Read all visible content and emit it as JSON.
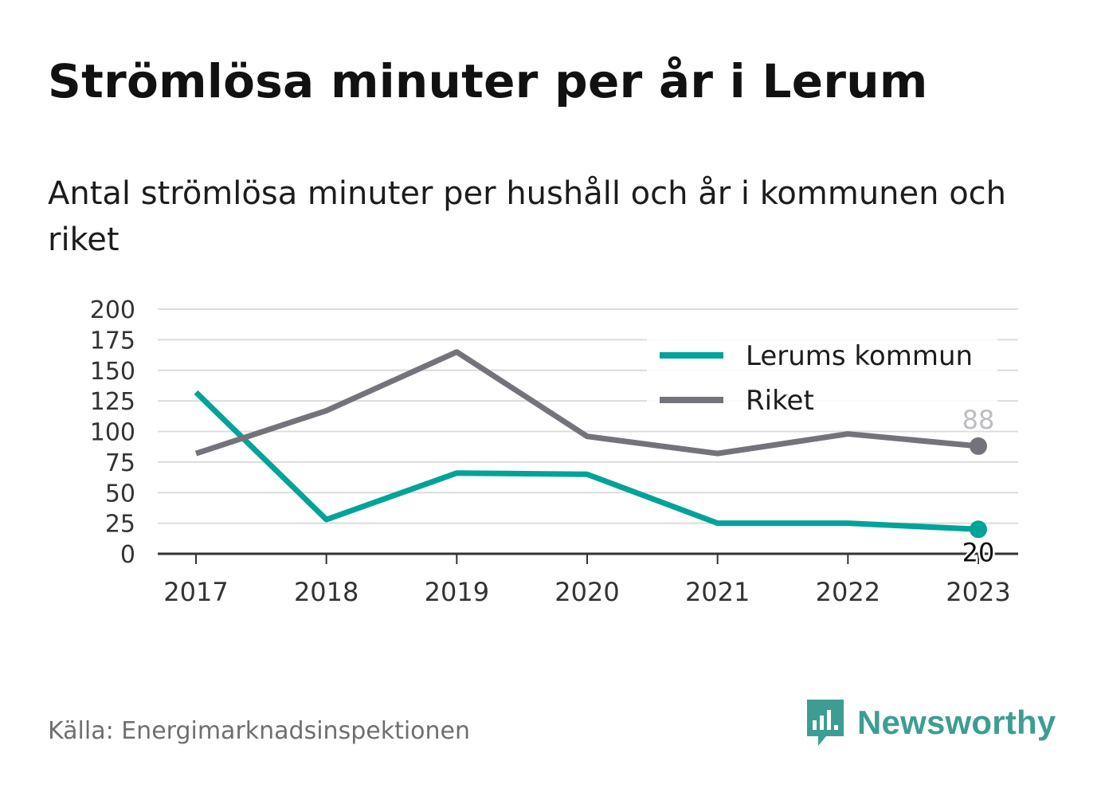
{
  "title": "Strömlösa minuter per år i Lerum",
  "subtitle": "Antal strömlösa minuter per hushåll och år i kommunen och riket",
  "source": "Källa: Energimarknadsinspektionen",
  "brand": {
    "name": "Newsworthy",
    "icon": "newsworthy-logo-icon",
    "color": "#3d9d93"
  },
  "chart_data": {
    "type": "line",
    "x": [
      "2017",
      "2018",
      "2019",
      "2020",
      "2021",
      "2022",
      "2023"
    ],
    "series": [
      {
        "name": "Lerums kommun",
        "color": "#00a398",
        "values": [
          132,
          28,
          66,
          65,
          25,
          25,
          20
        ],
        "end_label": "20"
      },
      {
        "name": "Riket",
        "color": "#73737b",
        "values": [
          82,
          117,
          165,
          96,
          82,
          98,
          88
        ],
        "end_label": "88"
      }
    ],
    "yticks": [
      "0",
      "25",
      "50",
      "75",
      "100",
      "125",
      "150",
      "175",
      "200"
    ],
    "ylim": [
      0,
      200
    ],
    "grid": true,
    "legend_position": "top-right"
  }
}
